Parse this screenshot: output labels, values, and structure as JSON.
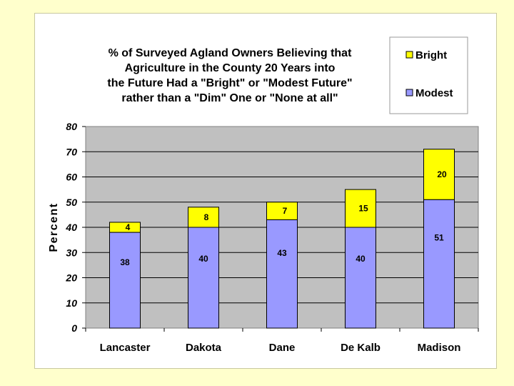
{
  "chart_data": {
    "type": "stacked-bar",
    "title_lines": [
      "% of Surveyed Agland Owners Believing that",
      "Agriculture in the County 20 Years into",
      "the Future Had a \"Bright\" or \"Modest Future\"",
      "rather than a \"Dim\" One or \"None at all\""
    ],
    "categories": [
      "Lancaster",
      "Dakota",
      "Dane",
      "De Kalb",
      "Madison"
    ],
    "series": [
      {
        "name": "Modest",
        "values": [
          38,
          40,
          43,
          40,
          51
        ],
        "color": "#9999ff"
      },
      {
        "name": "Bright",
        "values": [
          4,
          8,
          7,
          15,
          20
        ],
        "color": "#ffff00"
      }
    ],
    "legend_order": [
      "Bright",
      "Modest"
    ],
    "xlabel": "",
    "ylabel": "Percent",
    "ylim": [
      0,
      80
    ],
    "yticks": [
      "0",
      "10",
      "20",
      "30",
      "40",
      "50",
      "60",
      "70",
      "80"
    ],
    "grid": true,
    "legend_position": "top-right",
    "plot_background": "#c0c0c0"
  }
}
